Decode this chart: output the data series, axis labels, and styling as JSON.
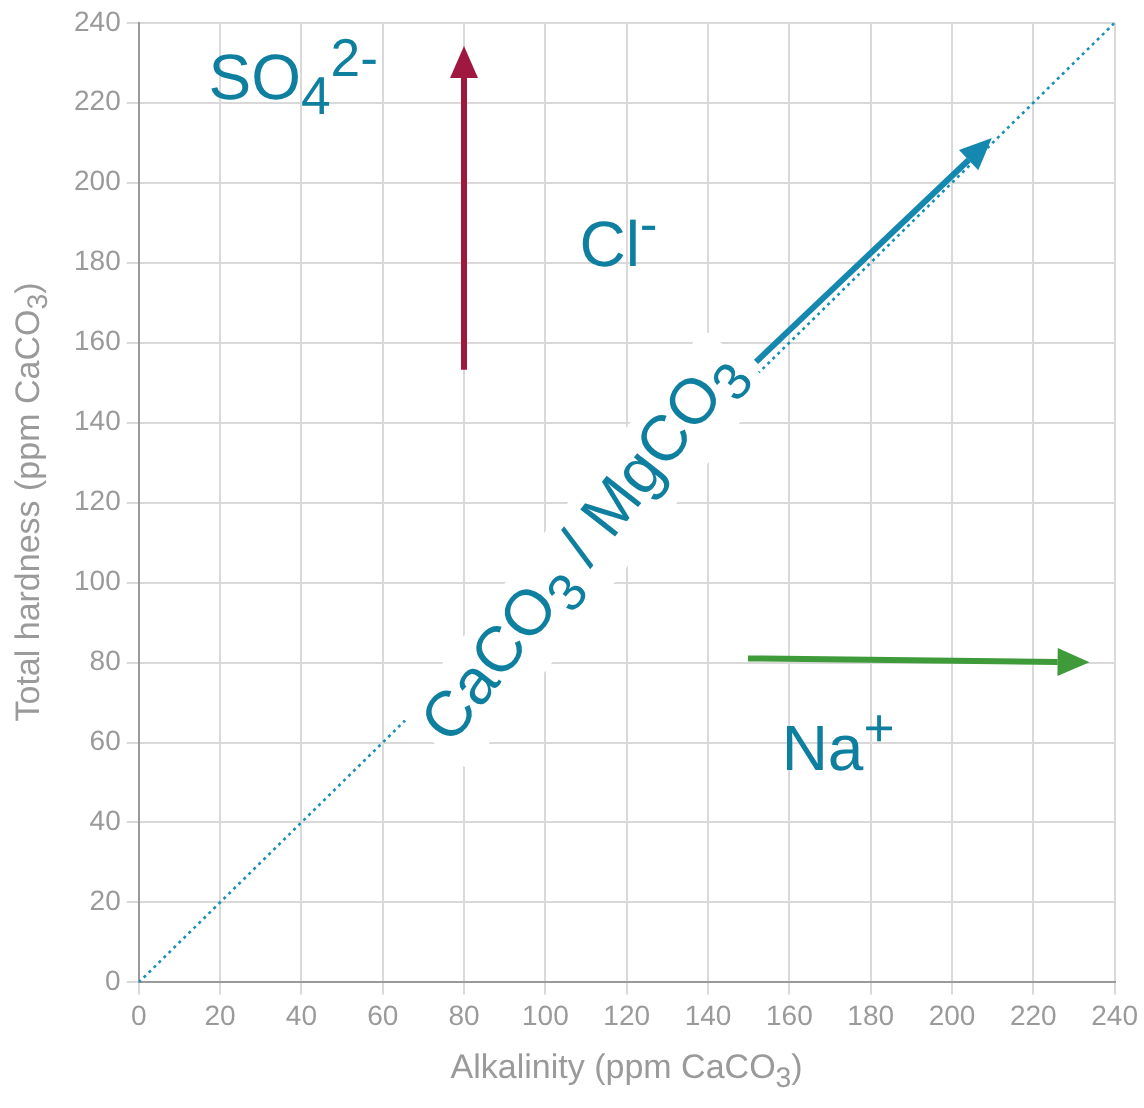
{
  "chart_data": {
    "type": "line",
    "xlabel": "Alkalinity (ppm CaCO$_{3}$)",
    "ylabel": "Total hardness (ppm CaCO$_{3}$)",
    "x": [
      0,
      240
    ],
    "series": [
      {
        "color": "#1a8fb5",
        "values": [
          0,
          240
        ],
        "line_style": "dotted",
        "marker": "none"
      }
    ],
    "xlim": [
      0,
      240
    ],
    "xticks": [
      0,
      20,
      40,
      60,
      80,
      100,
      120,
      140,
      160,
      180,
      200,
      220,
      240
    ],
    "ylim": [
      0,
      240
    ],
    "yticks": [
      0,
      20,
      40,
      60,
      80,
      100,
      120,
      140,
      160,
      180,
      200,
      220,
      240
    ],
    "grid": true,
    "legend": false,
    "annotations": [
      "SO$_{4}$$^{2-}$",
      "Cl$^{-}$",
      {
        "text": "CaCO$_{3}$ / MgCO$_{3}$",
        "x": 110,
        "y": 108
      },
      "Na$^{+}$"
    ]
  }
}
